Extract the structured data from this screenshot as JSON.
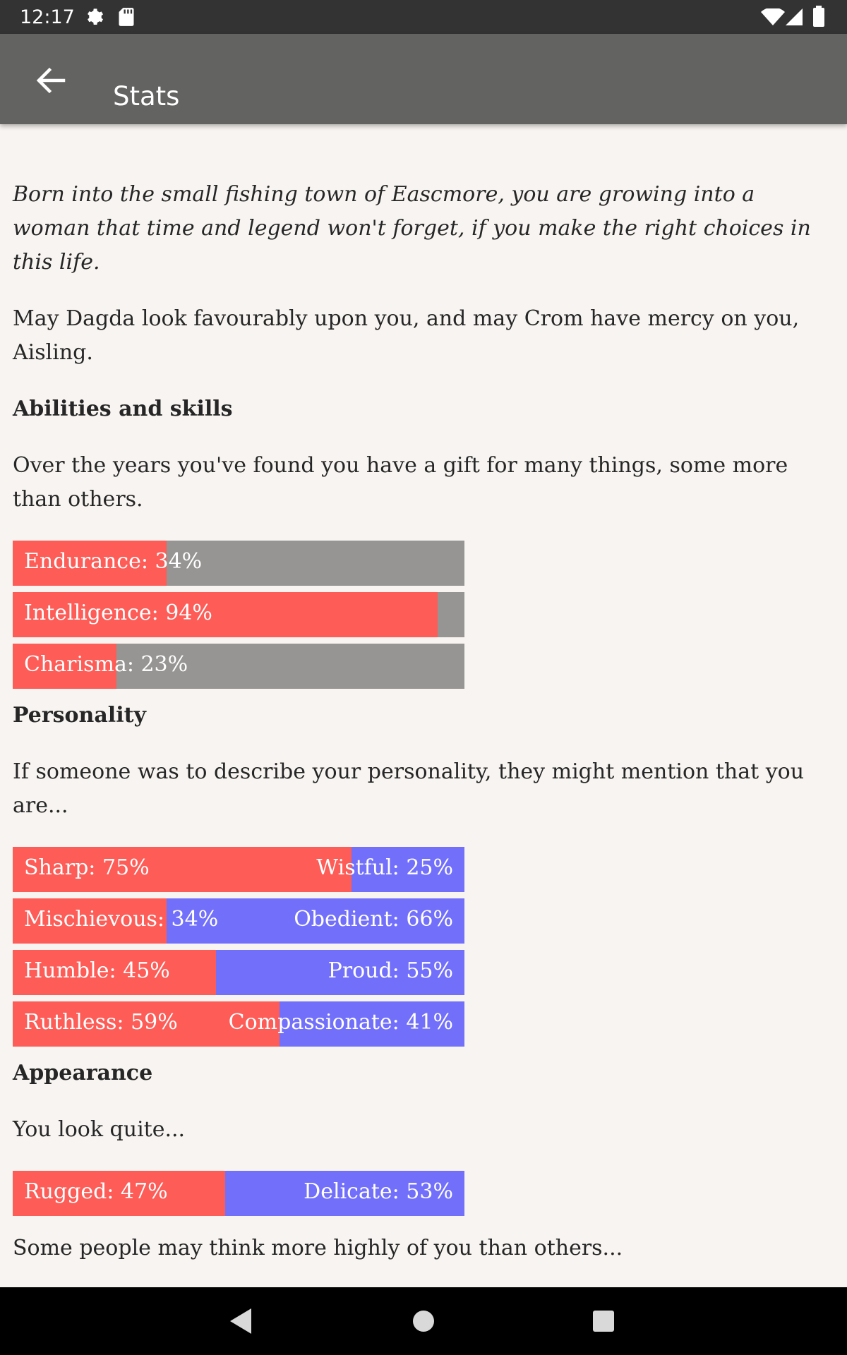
{
  "status_bar": {
    "time": "12:17"
  },
  "app_bar": {
    "title": "Stats"
  },
  "intro": {
    "story": "Born into the small fishing town of Eascmore, you are growing into a woman that time and legend won't forget, if you make the right choices in this life.",
    "blessing": "May Dagda look favourably upon you, and may Crom have mercy on you, Aisling."
  },
  "abilities": {
    "heading": "Abilities and skills",
    "description": "Over the years you've found you have a gift for many things, some more than others.",
    "bars": [
      {
        "label": "Endurance: 34%",
        "value": 34
      },
      {
        "label": "Intelligence: 94%",
        "value": 94
      },
      {
        "label": "Charisma: 23%",
        "value": 23
      }
    ]
  },
  "personality": {
    "heading": "Personality",
    "description": "If someone was to describe your personality, they might mention that you are...",
    "bars": [
      {
        "left_label": "Sharp: 75%",
        "right_label": "Wistful: 25%",
        "value": 75
      },
      {
        "left_label": "Mischievous: 34%",
        "right_label": "Obedient: 66%",
        "value": 34
      },
      {
        "left_label": "Humble: 45%",
        "right_label": "Proud: 55%",
        "value": 45
      },
      {
        "left_label": "Ruthless: 59%",
        "right_label": "Compassionate: 41%",
        "value": 59
      }
    ]
  },
  "appearance": {
    "heading": "Appearance",
    "description": "You look quite...",
    "bars": [
      {
        "left_label": "Rugged: 47%",
        "right_label": "Delicate: 53%",
        "value": 47
      }
    ],
    "footer": "Some people may think more highly of you than others..."
  },
  "colors": {
    "fill_red": "#fd5c57",
    "track_gray": "#969593",
    "track_blue": "#7270fb"
  },
  "icons": {
    "status": [
      "gear-icon",
      "sd-card-icon",
      "wifi-icon",
      "signal-icon",
      "battery-icon"
    ],
    "app_bar": [
      "back-arrow-icon"
    ],
    "nav": [
      "nav-back-icon",
      "nav-home-icon",
      "nav-recents-icon"
    ]
  }
}
